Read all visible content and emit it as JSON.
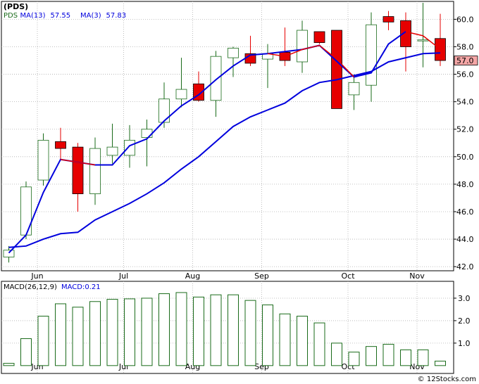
{
  "watermark": "© 12Stocks.com",
  "colors": {
    "up_candle": "#1a6b1a",
    "down_candle": "#e60000",
    "ma13": "#0000dd",
    "ma3": "#e60000",
    "macd_bar": "#1a6b1a",
    "last_price_box": "#f4a6a6",
    "grid": "#b0b0b0"
  },
  "chart_data": [
    {
      "type": "candlestick",
      "ticker": "(PDS)",
      "legend": [
        {
          "label": "PDS",
          "color": "#1a6b1a"
        },
        {
          "label": "MA(13)",
          "value": "57.55",
          "color": "#0000dd"
        },
        {
          "label": "MA(3)",
          "value": "57.83",
          "color": "#0000dd"
        }
      ],
      "x_labels": [
        {
          "label": "Jun",
          "week": 1
        },
        {
          "label": "Jul",
          "week": 6
        },
        {
          "label": "Aug",
          "week": 10
        },
        {
          "label": "Sep",
          "week": 14
        },
        {
          "label": "Oct",
          "week": 19
        },
        {
          "label": "Nov",
          "week": 23
        }
      ],
      "y_ticks": [
        "42.0",
        "44.0",
        "46.0",
        "48.0",
        "50.0",
        "52.0",
        "54.0",
        "56.0",
        "58.0",
        "60.0"
      ],
      "ylim": [
        41.7,
        61.3
      ],
      "last_price_label": "57.0",
      "last_price": 57.0,
      "candles": [
        {
          "o": 42.7,
          "h": 43.5,
          "l": 42.3,
          "c": 43.2
        },
        {
          "o": 44.3,
          "h": 48.2,
          "l": 44.0,
          "c": 47.8
        },
        {
          "o": 48.3,
          "h": 51.7,
          "l": 47.9,
          "c": 51.2
        },
        {
          "o": 51.1,
          "h": 52.1,
          "l": 49.8,
          "c": 50.6
        },
        {
          "o": 50.7,
          "h": 51.0,
          "l": 46.0,
          "c": 47.3
        },
        {
          "o": 47.3,
          "h": 51.4,
          "l": 46.5,
          "c": 50.6
        },
        {
          "o": 50.1,
          "h": 52.4,
          "l": 49.5,
          "c": 50.7
        },
        {
          "o": 50.1,
          "h": 52.3,
          "l": 49.2,
          "c": 51.2
        },
        {
          "o": 51.4,
          "h": 52.7,
          "l": 49.3,
          "c": 52.0
        },
        {
          "o": 52.5,
          "h": 55.4,
          "l": 52.1,
          "c": 54.2
        },
        {
          "o": 54.2,
          "h": 57.2,
          "l": 53.6,
          "c": 54.9
        },
        {
          "o": 55.3,
          "h": 56.2,
          "l": 54.0,
          "c": 54.1
        },
        {
          "o": 54.1,
          "h": 57.7,
          "l": 52.9,
          "c": 57.3
        },
        {
          "o": 57.2,
          "h": 58.0,
          "l": 55.8,
          "c": 57.9
        },
        {
          "o": 57.5,
          "h": 58.8,
          "l": 56.6,
          "c": 56.8
        },
        {
          "o": 57.1,
          "h": 58.2,
          "l": 55.0,
          "c": 57.5
        },
        {
          "o": 57.6,
          "h": 59.4,
          "l": 56.6,
          "c": 57.0
        },
        {
          "o": 56.9,
          "h": 59.9,
          "l": 56.1,
          "c": 59.2
        },
        {
          "o": 59.1,
          "h": 59.1,
          "l": 58.2,
          "c": 58.3
        },
        {
          "o": 59.2,
          "h": 59.2,
          "l": 53.5,
          "c": 53.5
        },
        {
          "o": 54.5,
          "h": 56.0,
          "l": 53.4,
          "c": 55.4
        },
        {
          "o": 55.2,
          "h": 60.5,
          "l": 54.0,
          "c": 59.6
        },
        {
          "o": 60.2,
          "h": 60.6,
          "l": 59.2,
          "c": 59.8
        },
        {
          "o": 59.9,
          "h": 60.5,
          "l": 56.2,
          "c": 58.0
        },
        {
          "o": 58.5,
          "h": 61.2,
          "l": 56.5,
          "c": 58.5
        },
        {
          "o": 58.6,
          "h": 60.4,
          "l": 56.6,
          "c": 57.0
        }
      ],
      "ma13": [
        {
          "i": 0,
          "v": 43.4
        },
        {
          "i": 1,
          "v": 43.5
        },
        {
          "i": 2,
          "v": 44.0
        },
        {
          "i": 3,
          "v": 44.4
        },
        {
          "i": 4,
          "v": 44.5
        },
        {
          "i": 5,
          "v": 45.4
        },
        {
          "i": 6,
          "v": 46.0
        },
        {
          "i": 7,
          "v": 46.6
        },
        {
          "i": 8,
          "v": 47.3
        },
        {
          "i": 9,
          "v": 48.1
        },
        {
          "i": 10,
          "v": 49.1
        },
        {
          "i": 11,
          "v": 50.0
        },
        {
          "i": 12,
          "v": 51.1
        },
        {
          "i": 13,
          "v": 52.2
        },
        {
          "i": 14,
          "v": 52.9
        },
        {
          "i": 15,
          "v": 53.4
        },
        {
          "i": 16,
          "v": 53.9
        },
        {
          "i": 17,
          "v": 54.8
        },
        {
          "i": 18,
          "v": 55.4
        },
        {
          "i": 19,
          "v": 55.6
        },
        {
          "i": 20,
          "v": 55.9
        },
        {
          "i": 21,
          "v": 56.2
        },
        {
          "i": 22,
          "v": 56.9
        },
        {
          "i": 23,
          "v": 57.2
        },
        {
          "i": 24,
          "v": 57.5
        },
        {
          "i": 25,
          "v": 57.55
        }
      ],
      "ma3_blue": [
        {
          "i": 0,
          "v": 43.0
        },
        {
          "i": 1,
          "v": 44.3
        },
        {
          "i": 2,
          "v": 47.4
        },
        {
          "i": 3,
          "v": 49.8
        },
        {
          "i": 5,
          "v": 49.4
        },
        {
          "i": 6,
          "v": 49.4
        },
        {
          "i": 7,
          "v": 50.8
        },
        {
          "i": 8,
          "v": 51.3
        },
        {
          "i": 9,
          "v": 52.6
        },
        {
          "i": 10,
          "v": 53.7
        },
        {
          "i": 11,
          "v": 54.5
        },
        {
          "i": 12,
          "v": 55.6
        },
        {
          "i": 13,
          "v": 56.6
        },
        {
          "i": 14,
          "v": 57.4
        },
        {
          "i": 15,
          "v": 57.5
        },
        {
          "i": 17,
          "v": 57.8
        },
        {
          "i": 18,
          "v": 58.1
        },
        {
          "i": 20,
          "v": 55.8
        },
        {
          "i": 21,
          "v": 56.1
        },
        {
          "i": 22,
          "v": 58.2
        },
        {
          "i": 23,
          "v": 59.1
        }
      ],
      "ma3_red": [
        {
          "i": 3,
          "v": 49.8
        },
        {
          "i": 4,
          "v": 49.6
        },
        {
          "i": 5,
          "v": 49.4
        },
        {
          "i": 15,
          "v": 57.5
        },
        {
          "i": 16,
          "v": 57.3
        },
        {
          "i": 17,
          "v": 57.8
        },
        {
          "i": 18,
          "v": 58.1
        },
        {
          "i": 19,
          "v": 57.1
        },
        {
          "i": 20,
          "v": 55.8
        },
        {
          "i": 23,
          "v": 59.1
        },
        {
          "i": 24,
          "v": 58.8
        },
        {
          "i": 25,
          "v": 57.83
        }
      ]
    },
    {
      "type": "bar",
      "title": "MACD(26,12,9)",
      "legend_value_label": "MACD:0.21",
      "y_ticks": [
        "1.0",
        "2.0",
        "3.0"
      ],
      "ylim": [
        -0.35,
        3.75
      ],
      "values": [
        0.1,
        1.2,
        2.2,
        2.75,
        2.6,
        2.85,
        2.95,
        2.97,
        3.0,
        3.2,
        3.25,
        3.05,
        3.15,
        3.15,
        2.9,
        2.7,
        2.3,
        2.2,
        1.9,
        1.0,
        0.6,
        0.85,
        0.95,
        0.7,
        0.7,
        0.2
      ]
    }
  ]
}
